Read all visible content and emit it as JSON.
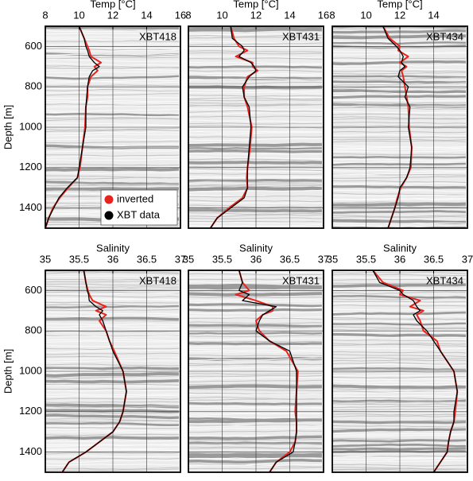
{
  "chart_data": [
    {
      "type": "line",
      "xlabel": "Temp [°C]",
      "ylabel": "Depth [m]",
      "annotation": "XBT418",
      "xlim": [
        8,
        16
      ],
      "xticks": [
        8,
        10,
        12,
        14,
        16
      ],
      "ylim": [
        1500,
        500
      ],
      "yticks": [
        600,
        800,
        1000,
        1200,
        1400
      ],
      "grid": true,
      "legend": "lower right",
      "y": [
        500,
        560,
        600,
        620,
        650,
        680,
        700,
        720,
        750,
        800,
        850,
        900,
        1000,
        1100,
        1200,
        1250,
        1300,
        1350,
        1400,
        1450,
        1500
      ],
      "series": [
        {
          "name": "inverted",
          "color": "#e8221c",
          "values": [
            10.0,
            10.3,
            10.5,
            10.6,
            10.7,
            11.3,
            10.9,
            11.1,
            10.7,
            10.5,
            10.5,
            10.4,
            10.35,
            10.2,
            10.05,
            9.9,
            9.35,
            8.85,
            8.45,
            8.2,
            8.0
          ]
        },
        {
          "name": "XBT data",
          "color": "#000000",
          "values": [
            10.0,
            10.3,
            10.4,
            10.5,
            10.6,
            10.9,
            11.2,
            10.8,
            10.6,
            10.5,
            10.45,
            10.4,
            10.4,
            10.2,
            10.0,
            9.9,
            9.3,
            8.8,
            8.5,
            8.2,
            8.0
          ]
        }
      ]
    },
    {
      "type": "line",
      "xlabel": "Temp [°C]",
      "annotation": "XBT431",
      "xlim": [
        8,
        16
      ],
      "xticks": [
        8,
        10,
        12,
        14,
        16
      ],
      "ylim": [
        1500,
        500
      ],
      "yticks": [
        600,
        800,
        1000,
        1200,
        1400
      ],
      "grid": true,
      "y": [
        500,
        560,
        600,
        620,
        650,
        680,
        700,
        720,
        750,
        800,
        850,
        900,
        1000,
        1100,
        1200,
        1250,
        1300,
        1350,
        1400,
        1450,
        1500
      ],
      "series": [
        {
          "color": "#e8221c",
          "values": [
            10.5,
            10.7,
            11.0,
            11.5,
            10.8,
            11.8,
            11.8,
            12.1,
            11.5,
            11.3,
            11.3,
            11.5,
            11.75,
            11.65,
            11.5,
            11.45,
            11.5,
            11.2,
            10.4,
            9.7,
            9.3
          ]
        },
        {
          "color": "#000000",
          "values": [
            10.5,
            10.6,
            11.2,
            11.3,
            11.0,
            11.7,
            11.9,
            12.0,
            11.6,
            11.2,
            11.3,
            11.6,
            11.7,
            11.6,
            11.5,
            11.5,
            11.5,
            11.3,
            10.5,
            9.7,
            9.3
          ]
        }
      ]
    },
    {
      "type": "line",
      "xlabel": "Temp [°C]",
      "annotation": "XBT434",
      "xlim": [
        8,
        16
      ],
      "xticks": [
        8,
        10,
        12,
        14
      ],
      "ylim": [
        1500,
        500
      ],
      "yticks": [
        600,
        800,
        1000,
        1200,
        1400
      ],
      "grid": true,
      "y": [
        500,
        560,
        600,
        620,
        650,
        680,
        700,
        720,
        750,
        800,
        850,
        900,
        1000,
        1100,
        1200,
        1250,
        1300,
        1350,
        1400,
        1450,
        1500
      ],
      "series": [
        {
          "color": "#e8221c",
          "values": [
            11.0,
            11.4,
            12.0,
            11.9,
            12.5,
            12.0,
            12.4,
            12.1,
            12.2,
            12.3,
            12.4,
            12.5,
            12.55,
            12.7,
            12.65,
            12.4,
            12.05,
            11.85,
            11.7,
            11.5,
            11.3
          ]
        },
        {
          "color": "#000000",
          "values": [
            11.0,
            11.3,
            11.8,
            12.0,
            12.2,
            12.1,
            12.3,
            12.0,
            11.9,
            12.5,
            12.3,
            12.6,
            12.5,
            12.7,
            12.6,
            12.4,
            12.0,
            11.9,
            11.7,
            11.5,
            11.3
          ]
        }
      ]
    },
    {
      "type": "line",
      "xlabel": "Salinity",
      "ylabel": "Depth [m]",
      "annotation": "XBT418",
      "xlim": [
        35,
        37
      ],
      "xticks": [
        35,
        35.5,
        36,
        36.5,
        37
      ],
      "ylim": [
        1500,
        500
      ],
      "yticks": [
        600,
        800,
        1000,
        1200,
        1400
      ],
      "grid": true,
      "y": [
        500,
        560,
        600,
        620,
        650,
        680,
        700,
        720,
        750,
        800,
        850,
        900,
        1000,
        1100,
        1200,
        1250,
        1300,
        1350,
        1400,
        1450,
        1500
      ],
      "series": [
        {
          "color": "#e8221c",
          "values": [
            35.57,
            35.6,
            35.63,
            35.65,
            35.7,
            35.9,
            35.75,
            35.9,
            35.8,
            35.9,
            35.95,
            36.02,
            36.15,
            36.2,
            36.15,
            36.1,
            36.0,
            35.8,
            35.6,
            35.35,
            35.25
          ]
        },
        {
          "color": "#000000",
          "values": [
            35.57,
            35.6,
            35.62,
            35.64,
            35.65,
            35.75,
            35.85,
            35.8,
            35.85,
            35.9,
            35.95,
            36.0,
            36.15,
            36.2,
            36.15,
            36.1,
            36.0,
            35.8,
            35.6,
            35.35,
            35.25
          ]
        }
      ]
    },
    {
      "type": "line",
      "xlabel": "Salinity",
      "annotation": "XBT431",
      "xlim": [
        35,
        37
      ],
      "xticks": [
        35,
        35.5,
        36,
        36.5,
        37
      ],
      "ylim": [
        1500,
        500
      ],
      "yticks": [
        600,
        800,
        1000,
        1200,
        1400
      ],
      "grid": true,
      "y": [
        500,
        560,
        600,
        620,
        650,
        680,
        700,
        720,
        750,
        800,
        850,
        900,
        1000,
        1100,
        1200,
        1250,
        1300,
        1350,
        1400,
        1450,
        1500
      ],
      "series": [
        {
          "color": "#e8221c",
          "values": [
            35.75,
            35.8,
            35.9,
            35.7,
            36.0,
            36.25,
            36.25,
            36.1,
            36.0,
            36.05,
            36.2,
            36.45,
            36.62,
            36.6,
            36.58,
            36.6,
            36.6,
            36.58,
            36.5,
            36.3,
            36.2
          ]
        },
        {
          "color": "#000000",
          "values": [
            35.75,
            35.8,
            35.75,
            35.9,
            35.8,
            36.3,
            36.2,
            36.1,
            36.05,
            36.0,
            36.2,
            36.5,
            36.6,
            36.6,
            36.6,
            36.6,
            36.6,
            36.58,
            36.55,
            36.3,
            36.2
          ]
        }
      ]
    },
    {
      "type": "line",
      "xlabel": "Salinity",
      "annotation": "XBT434",
      "xlim": [
        35,
        37
      ],
      "xticks": [
        35,
        35.5,
        36,
        36.5,
        37
      ],
      "ylim": [
        1500,
        500
      ],
      "yticks": [
        600,
        800,
        1000,
        1200,
        1400
      ],
      "grid": true,
      "y": [
        500,
        560,
        600,
        620,
        650,
        680,
        700,
        720,
        750,
        800,
        850,
        900,
        1000,
        1100,
        1200,
        1250,
        1300,
        1350,
        1400,
        1450,
        1500
      ],
      "series": [
        {
          "color": "#e8221c",
          "values": [
            35.6,
            35.75,
            36.05,
            36.0,
            36.3,
            36.15,
            36.35,
            36.25,
            36.3,
            36.35,
            36.55,
            36.6,
            36.8,
            36.85,
            36.82,
            36.8,
            36.75,
            36.72,
            36.7,
            36.6,
            36.5
          ]
        },
        {
          "color": "#000000",
          "values": [
            35.6,
            35.7,
            36.0,
            36.05,
            36.2,
            36.25,
            36.3,
            36.2,
            36.25,
            36.4,
            36.5,
            36.6,
            36.8,
            36.85,
            36.8,
            36.8,
            36.75,
            36.72,
            36.7,
            36.6,
            36.5
          ]
        }
      ]
    }
  ]
}
